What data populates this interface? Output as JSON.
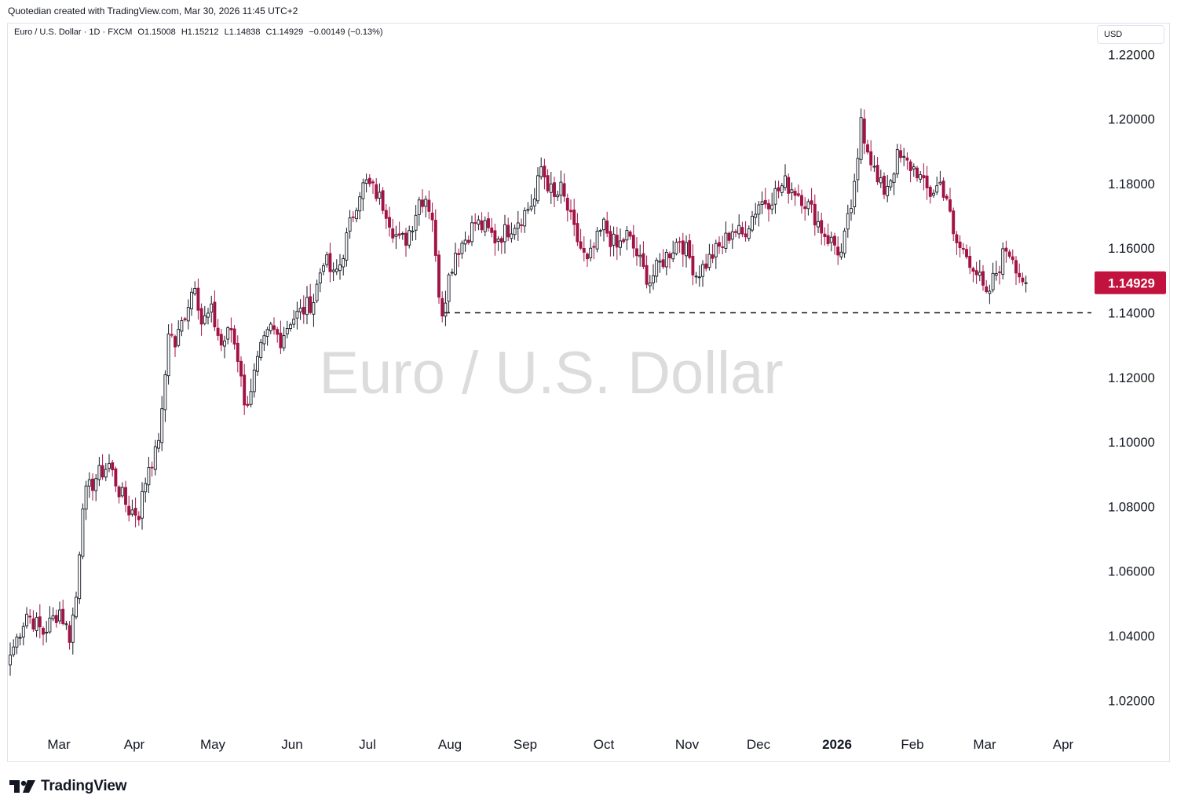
{
  "header": {
    "created_text": "Quotedian created with TradingView.com, Mar 30, 2026 11:45 UTC+2"
  },
  "legend": {
    "symbol": "Euro / U.S. Dollar · 1D · FXCM",
    "open": "O1.15008",
    "high": "H1.15212",
    "low": "L1.14838",
    "close": "C1.14929",
    "change": "−0.00149 (−0.13%)"
  },
  "currency_label": "USD",
  "watermark": "Euro / U.S. Dollar",
  "footer": {
    "brand": "TradingView",
    "logo_icon": "tradingview-logo-icon"
  },
  "colors": {
    "up": "#131722",
    "down": "#a21345",
    "price_tag": "#c2133f",
    "watermark": "#dcdcdc"
  },
  "chart_data": {
    "type": "candlestick",
    "title": "Euro / U.S. Dollar",
    "ylabel": "USD",
    "ylim": [
      1.005,
      1.225
    ],
    "y_ticks": [
      "1.22000",
      "1.20000",
      "1.18000",
      "1.16000",
      "1.14000",
      "1.12000",
      "1.10000",
      "1.08000",
      "1.06000",
      "1.04000",
      "1.02000"
    ],
    "x_ticks": [
      "Mar",
      "Apr",
      "May",
      "Jun",
      "Jul",
      "Aug",
      "Sep",
      "Oct",
      "Nov",
      "Dec",
      "2026",
      "Feb",
      "Mar",
      "Apr"
    ],
    "x_tick_bold": [
      false,
      false,
      false,
      false,
      false,
      false,
      false,
      false,
      false,
      false,
      true,
      false,
      false,
      false
    ],
    "last_price": "1.14929",
    "last_price_value": 1.14929,
    "support_level": 1.14,
    "close_anchors": [
      [
        0,
        1.034
      ],
      [
        5,
        1.047
      ],
      [
        10,
        1.041
      ],
      [
        15,
        1.048
      ],
      [
        18,
        1.04
      ],
      [
        20,
        1.052
      ],
      [
        22,
        1.082
      ],
      [
        26,
        1.089
      ],
      [
        30,
        1.093
      ],
      [
        33,
        1.085
      ],
      [
        36,
        1.079
      ],
      [
        39,
        1.078
      ],
      [
        42,
        1.093
      ],
      [
        44,
        1.096
      ],
      [
        46,
        1.108
      ],
      [
        47,
        1.121
      ],
      [
        48,
        1.135
      ],
      [
        50,
        1.13
      ],
      [
        53,
        1.14
      ],
      [
        56,
        1.15
      ],
      [
        58,
        1.137
      ],
      [
        61,
        1.14
      ],
      [
        64,
        1.13
      ],
      [
        67,
        1.135
      ],
      [
        70,
        1.122
      ],
      [
        71,
        1.11
      ],
      [
        73,
        1.117
      ],
      [
        76,
        1.128
      ],
      [
        79,
        1.135
      ],
      [
        82,
        1.132
      ],
      [
        85,
        1.138
      ],
      [
        88,
        1.14
      ],
      [
        92,
        1.144
      ],
      [
        95,
        1.157
      ],
      [
        98,
        1.151
      ],
      [
        100,
        1.155
      ],
      [
        102,
        1.163
      ],
      [
        104,
        1.171
      ],
      [
        106,
        1.178
      ],
      [
        108,
        1.18
      ],
      [
        111,
        1.177
      ],
      [
        114,
        1.172
      ],
      [
        116,
        1.166
      ],
      [
        118,
        1.162
      ],
      [
        120,
        1.163
      ],
      [
        122,
        1.168
      ],
      [
        124,
        1.175
      ],
      [
        126,
        1.176
      ],
      [
        128,
        1.17
      ],
      [
        129,
        1.156
      ],
      [
        130,
        1.147
      ],
      [
        131,
        1.141
      ],
      [
        133,
        1.151
      ],
      [
        135,
        1.159
      ],
      [
        138,
        1.163
      ],
      [
        141,
        1.168
      ],
      [
        144,
        1.166
      ],
      [
        147,
        1.163
      ],
      [
        150,
        1.165
      ],
      [
        153,
        1.168
      ],
      [
        156,
        1.171
      ],
      [
        159,
        1.175
      ],
      [
        161,
        1.185
      ],
      [
        163,
        1.18
      ],
      [
        165,
        1.175
      ],
      [
        167,
        1.178
      ],
      [
        169,
        1.172
      ],
      [
        171,
        1.165
      ],
      [
        173,
        1.16
      ],
      [
        175,
        1.155
      ],
      [
        177,
        1.16
      ],
      [
        180,
        1.167
      ],
      [
        182,
        1.163
      ],
      [
        184,
        1.16
      ],
      [
        187,
        1.164
      ],
      [
        190,
        1.158
      ],
      [
        192,
        1.153
      ],
      [
        194,
        1.15
      ],
      [
        197,
        1.155
      ],
      [
        200,
        1.159
      ],
      [
        203,
        1.163
      ],
      [
        206,
        1.157
      ],
      [
        208,
        1.152
      ],
      [
        210,
        1.154
      ],
      [
        213,
        1.158
      ],
      [
        216,
        1.161
      ],
      [
        219,
        1.166
      ],
      [
        222,
        1.164
      ],
      [
        224,
        1.168
      ],
      [
        227,
        1.174
      ],
      [
        230,
        1.175
      ],
      [
        233,
        1.178
      ],
      [
        235,
        1.18
      ],
      [
        238,
        1.178
      ],
      [
        240,
        1.176
      ],
      [
        242,
        1.173
      ],
      [
        244,
        1.17
      ],
      [
        246,
        1.166
      ],
      [
        248,
        1.163
      ],
      [
        250,
        1.161
      ],
      [
        252,
        1.158
      ],
      [
        254,
        1.168
      ],
      [
        256,
        1.178
      ],
      [
        257,
        1.186
      ],
      [
        258,
        1.201
      ],
      [
        259,
        1.195
      ],
      [
        261,
        1.188
      ],
      [
        263,
        1.18
      ],
      [
        265,
        1.178
      ],
      [
        267,
        1.182
      ],
      [
        269,
        1.188
      ],
      [
        272,
        1.186
      ],
      [
        275,
        1.184
      ],
      [
        277,
        1.179
      ],
      [
        279,
        1.177
      ],
      [
        282,
        1.18
      ],
      [
        284,
        1.176
      ],
      [
        286,
        1.163
      ],
      [
        288,
        1.16
      ],
      [
        290,
        1.158
      ],
      [
        292,
        1.155
      ],
      [
        294,
        1.15
      ],
      [
        296,
        1.144
      ],
      [
        298,
        1.15
      ],
      [
        300,
        1.155
      ],
      [
        302,
        1.16
      ],
      [
        304,
        1.158
      ],
      [
        306,
        1.152
      ],
      [
        308,
        1.149
      ]
    ]
  }
}
